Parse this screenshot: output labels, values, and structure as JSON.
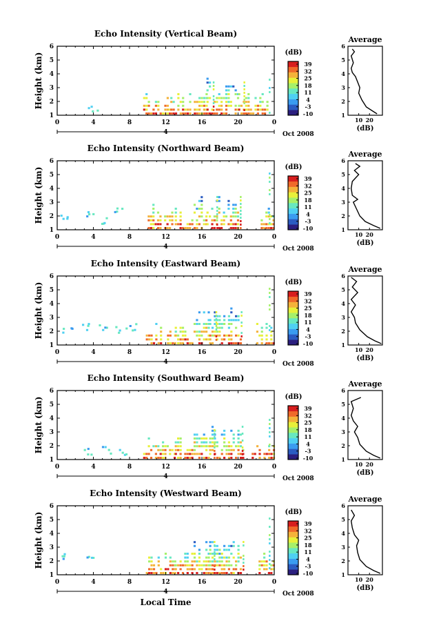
{
  "chart_data": {
    "type": "heatmap",
    "panels": [
      {
        "title": "Echo Intensity (Vertical Beam)",
        "beam": "vertical",
        "profile": [
          [
            27,
            1.1
          ],
          [
            23,
            1.3
          ],
          [
            17,
            1.6
          ],
          [
            13,
            2.1
          ],
          [
            10,
            2.6
          ],
          [
            11,
            3.0
          ],
          [
            9,
            3.4
          ],
          [
            7,
            3.8
          ],
          [
            4,
            4.1
          ],
          [
            3,
            4.4
          ],
          [
            5,
            4.8
          ],
          [
            3,
            5.3
          ],
          [
            6,
            5.6
          ],
          [
            4,
            5.8
          ]
        ]
      },
      {
        "title": "Echo Intensity (Northward Beam)",
        "beam": "northward",
        "profile": [
          [
            30,
            1.1
          ],
          [
            24,
            1.3
          ],
          [
            16,
            1.6
          ],
          [
            11,
            2.0
          ],
          [
            8,
            2.5
          ],
          [
            5,
            3.0
          ],
          [
            9,
            3.2
          ],
          [
            4,
            3.5
          ],
          [
            3,
            4.0
          ],
          [
            4,
            4.5
          ],
          [
            10,
            5.0
          ],
          [
            6,
            5.3
          ],
          [
            11,
            5.6
          ],
          [
            7,
            5.8
          ]
        ]
      },
      {
        "title": "Echo Intensity (Eastward Beam)",
        "beam": "eastward",
        "profile": [
          [
            31,
            1.1
          ],
          [
            25,
            1.3
          ],
          [
            18,
            1.6
          ],
          [
            11,
            2.1
          ],
          [
            7,
            2.6
          ],
          [
            6,
            3.0
          ],
          [
            3,
            3.4
          ],
          [
            7,
            3.9
          ],
          [
            3,
            4.3
          ],
          [
            9,
            4.8
          ],
          [
            4,
            5.2
          ],
          [
            8,
            5.6
          ],
          [
            3,
            5.9
          ]
        ]
      },
      {
        "title": "Echo Intensity (Southward Beam)",
        "beam": "southward",
        "profile": [
          [
            30,
            1.1
          ],
          [
            24,
            1.3
          ],
          [
            17,
            1.6
          ],
          [
            11,
            2.1
          ],
          [
            9,
            2.6
          ],
          [
            6,
            3.0
          ],
          [
            9,
            3.4
          ],
          [
            5,
            3.8
          ],
          [
            3,
            4.2
          ],
          [
            5,
            4.7
          ],
          [
            3,
            5.2
          ],
          [
            9,
            5.4
          ],
          [
            12,
            5.5
          ]
        ]
      },
      {
        "title": "Echo Intensity (Westward Beam)",
        "beam": "westward",
        "profile": [
          [
            30,
            1.1
          ],
          [
            24,
            1.3
          ],
          [
            17,
            1.6
          ],
          [
            11,
            2.1
          ],
          [
            9,
            2.6
          ],
          [
            8,
            3.1
          ],
          [
            10,
            3.5
          ],
          [
            6,
            3.9
          ],
          [
            4,
            4.4
          ],
          [
            3,
            4.9
          ],
          [
            6,
            5.3
          ],
          [
            3,
            5.7
          ]
        ]
      }
    ],
    "main_y_label": "Height (km)",
    "x_tick_labels": [
      "0",
      "4",
      "8",
      "12",
      "16",
      "20",
      "0"
    ],
    "x_range_hours": [
      0,
      24
    ],
    "y_tick_labels": [
      "1",
      "2",
      "3",
      "4",
      "5",
      "6"
    ],
    "y_range_km": [
      1,
      6
    ],
    "date_day": "4",
    "date_month_year": "Oct 2008",
    "x_label": "Local Time",
    "colorbar": {
      "unit": "(dB)",
      "ticks": [
        "39",
        "32",
        "25",
        "18",
        "11",
        "4",
        "-3",
        "-10"
      ],
      "range_db": [
        -10,
        39
      ],
      "colors": [
        "#2b1f7f",
        "#2b5cc2",
        "#3a9cf0",
        "#4fd0f2",
        "#68e8c0",
        "#a6f06a",
        "#e8f03a",
        "#f4b23a",
        "#f06a2a",
        "#d81e1e"
      ]
    },
    "average": {
      "title": "Average",
      "x_label": "(dB)",
      "x_tick_labels": [
        "10",
        "20"
      ],
      "x_ticks_db": [
        10,
        20
      ],
      "x_range_db": [
        0,
        32
      ]
    }
  }
}
